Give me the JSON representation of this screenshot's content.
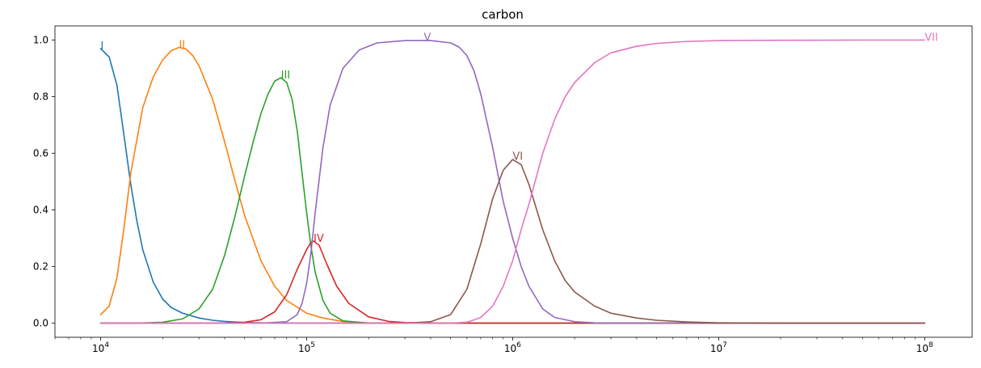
{
  "chart_data": {
    "type": "line",
    "title": "carbon",
    "xlabel": "",
    "ylabel": "",
    "xscale": "log",
    "xlim": [
      6000,
      170000000
    ],
    "ylim": [
      -0.05,
      1.05
    ],
    "grid": false,
    "legend": "none",
    "x_ticks": [
      {
        "value": 10000,
        "base": "10",
        "exp": "4"
      },
      {
        "value": 100000,
        "base": "10",
        "exp": "5"
      },
      {
        "value": 1000000,
        "base": "10",
        "exp": "6"
      },
      {
        "value": 10000000,
        "base": "10",
        "exp": "7"
      },
      {
        "value": 100000000,
        "base": "10",
        "exp": "8"
      }
    ],
    "y_ticks": [
      {
        "value": 0.0,
        "label": "0.0"
      },
      {
        "value": 0.2,
        "label": "0.2"
      },
      {
        "value": 0.4,
        "label": "0.4"
      },
      {
        "value": 0.6,
        "label": "0.6"
      },
      {
        "value": 0.8,
        "label": "0.8"
      },
      {
        "value": 1.0,
        "label": "1.0"
      }
    ],
    "series": [
      {
        "name": "I",
        "color": "#1f77b4",
        "label_x": 10000,
        "label_y": 0.97,
        "x": [
          10000,
          11000,
          12000,
          13000,
          14000,
          15000,
          16000,
          18000,
          20000,
          22000,
          25000,
          30000,
          35000,
          40000,
          50000,
          60000,
          80000,
          100000,
          200000,
          1000000,
          100000000
        ],
        "y": [
          0.97,
          0.94,
          0.84,
          0.66,
          0.49,
          0.36,
          0.26,
          0.145,
          0.085,
          0.055,
          0.035,
          0.018,
          0.01,
          0.006,
          0.002,
          0.001,
          0.0,
          0.0,
          0.0,
          0.0,
          0.0
        ]
      },
      {
        "name": "II",
        "color": "#ff7f0e",
        "label_x": 24000,
        "label_y": 0.975,
        "x": [
          10000,
          11000,
          12000,
          13000,
          14000,
          16000,
          18000,
          20000,
          22000,
          24000,
          26000,
          28000,
          30000,
          35000,
          40000,
          45000,
          50000,
          60000,
          70000,
          80000,
          100000,
          120000,
          150000,
          200000,
          300000,
          1000000,
          100000000
        ],
        "y": [
          0.03,
          0.06,
          0.16,
          0.34,
          0.53,
          0.76,
          0.87,
          0.93,
          0.962,
          0.974,
          0.968,
          0.945,
          0.91,
          0.79,
          0.64,
          0.5,
          0.38,
          0.22,
          0.13,
          0.08,
          0.035,
          0.018,
          0.006,
          0.001,
          0.0,
          0.0,
          0.0
        ]
      },
      {
        "name": "III",
        "color": "#2ca02c",
        "label_x": 75000,
        "label_y": 0.867,
        "x": [
          10000,
          15000,
          20000,
          25000,
          30000,
          35000,
          40000,
          45000,
          50000,
          55000,
          60000,
          65000,
          70000,
          75000,
          80000,
          85000,
          90000,
          95000,
          100000,
          105000,
          110000,
          120000,
          130000,
          150000,
          200000,
          300000,
          1000000,
          100000000
        ],
        "y": [
          0.0,
          0.0,
          0.003,
          0.015,
          0.05,
          0.12,
          0.24,
          0.38,
          0.52,
          0.64,
          0.74,
          0.81,
          0.855,
          0.867,
          0.85,
          0.79,
          0.68,
          0.53,
          0.39,
          0.27,
          0.18,
          0.08,
          0.035,
          0.008,
          0.0,
          0.0,
          0.0,
          0.0
        ]
      },
      {
        "name": "IV",
        "color": "#d62728",
        "label_x": 108000,
        "label_y": 0.29,
        "x": [
          10000,
          40000,
          50000,
          60000,
          70000,
          80000,
          90000,
          100000,
          105000,
          108000,
          115000,
          125000,
          140000,
          160000,
          200000,
          250000,
          300000,
          400000,
          1000000,
          100000000
        ],
        "y": [
          0.0,
          0.0,
          0.003,
          0.012,
          0.04,
          0.1,
          0.19,
          0.26,
          0.285,
          0.29,
          0.275,
          0.21,
          0.13,
          0.07,
          0.022,
          0.006,
          0.002,
          0.0,
          0.0,
          0.0
        ]
      },
      {
        "name": "V",
        "color": "#9467bd",
        "label_x": 370000,
        "label_y": 1.0,
        "x": [
          10000,
          60000,
          80000,
          90000,
          95000,
          100000,
          105000,
          110000,
          120000,
          130000,
          150000,
          180000,
          220000,
          300000,
          400000,
          500000,
          550000,
          600000,
          650000,
          700000,
          800000,
          900000,
          1000000,
          1100000,
          1200000,
          1400000,
          1600000,
          2000000,
          2500000,
          3000000,
          5000000,
          100000000
        ],
        "y": [
          0.0,
          0.0,
          0.005,
          0.03,
          0.07,
          0.14,
          0.25,
          0.39,
          0.62,
          0.77,
          0.9,
          0.965,
          0.99,
          0.998,
          0.998,
          0.99,
          0.975,
          0.945,
          0.89,
          0.81,
          0.62,
          0.43,
          0.3,
          0.2,
          0.13,
          0.05,
          0.02,
          0.005,
          0.001,
          0.0,
          0.0,
          0.0
        ]
      },
      {
        "name": "VI",
        "color": "#8c564b",
        "label_x": 1000000,
        "label_y": 0.58,
        "x": [
          10000,
          300000,
          400000,
          500000,
          600000,
          700000,
          800000,
          900000,
          1000000,
          1100000,
          1200000,
          1400000,
          1600000,
          1800000,
          2000000,
          2500000,
          3000000,
          4000000,
          5000000,
          7000000,
          10000000,
          20000000,
          100000000
        ],
        "y": [
          0.0,
          0.0,
          0.005,
          0.03,
          0.12,
          0.28,
          0.44,
          0.54,
          0.578,
          0.56,
          0.49,
          0.33,
          0.22,
          0.15,
          0.11,
          0.06,
          0.035,
          0.018,
          0.01,
          0.004,
          0.001,
          0.0,
          0.0
        ]
      },
      {
        "name": "VII",
        "color": "#e377c2",
        "label_x": 100000000,
        "label_y": 1.0,
        "x": [
          10000,
          500000,
          600000,
          700000,
          800000,
          900000,
          1000000,
          1100000,
          1200000,
          1400000,
          1600000,
          1800000,
          2000000,
          2500000,
          3000000,
          4000000,
          5000000,
          7000000,
          10000000,
          20000000,
          50000000,
          100000000
        ],
        "y": [
          0.0,
          0.0,
          0.003,
          0.02,
          0.06,
          0.13,
          0.22,
          0.33,
          0.42,
          0.6,
          0.72,
          0.8,
          0.85,
          0.92,
          0.955,
          0.978,
          0.988,
          0.995,
          0.998,
          0.999,
          1.0,
          1.0
        ]
      }
    ]
  }
}
